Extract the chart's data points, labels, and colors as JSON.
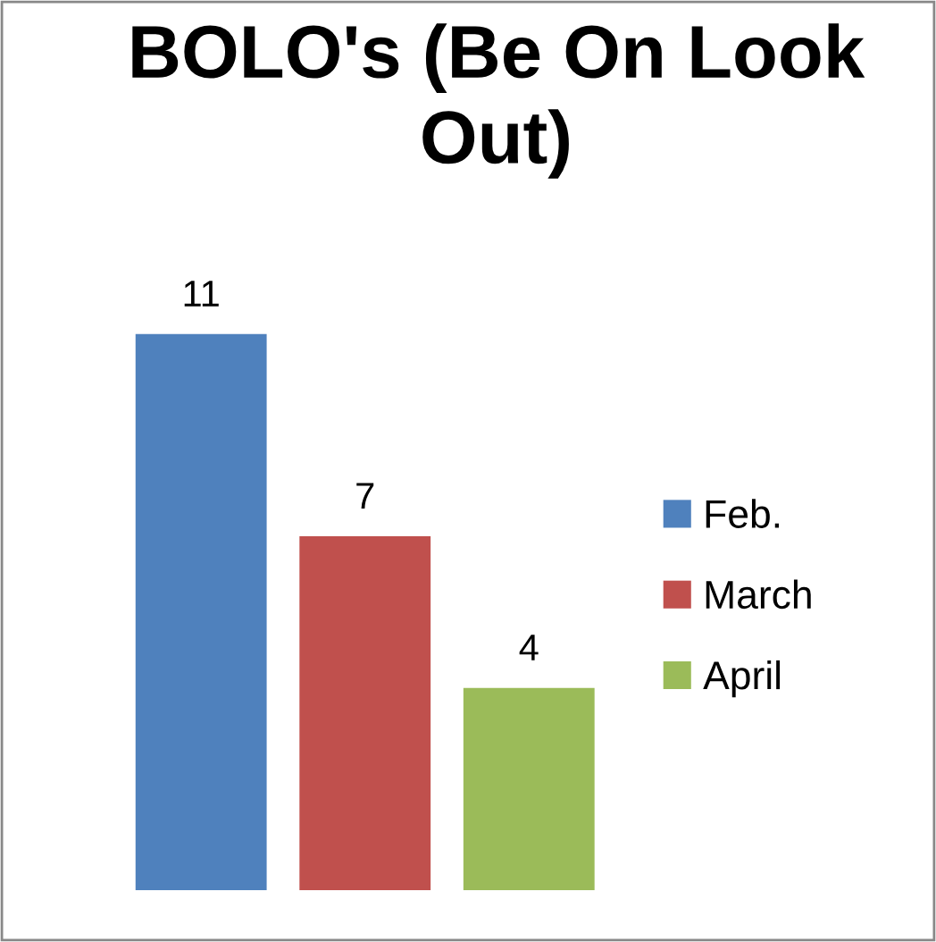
{
  "chart_data": {
    "type": "bar",
    "title": "BOLO's (Be On Look Out)",
    "categories": [
      null
    ],
    "series": [
      {
        "name": "Feb.",
        "color": "#4f81bd",
        "values": [
          11
        ]
      },
      {
        "name": "March",
        "color": "#c0504d",
        "values": [
          7
        ]
      },
      {
        "name": "April",
        "color": "#9bbb59",
        "values": [
          4
        ]
      }
    ],
    "data_labels": true,
    "legend": "right",
    "grid": false,
    "tick_labels": false
  }
}
